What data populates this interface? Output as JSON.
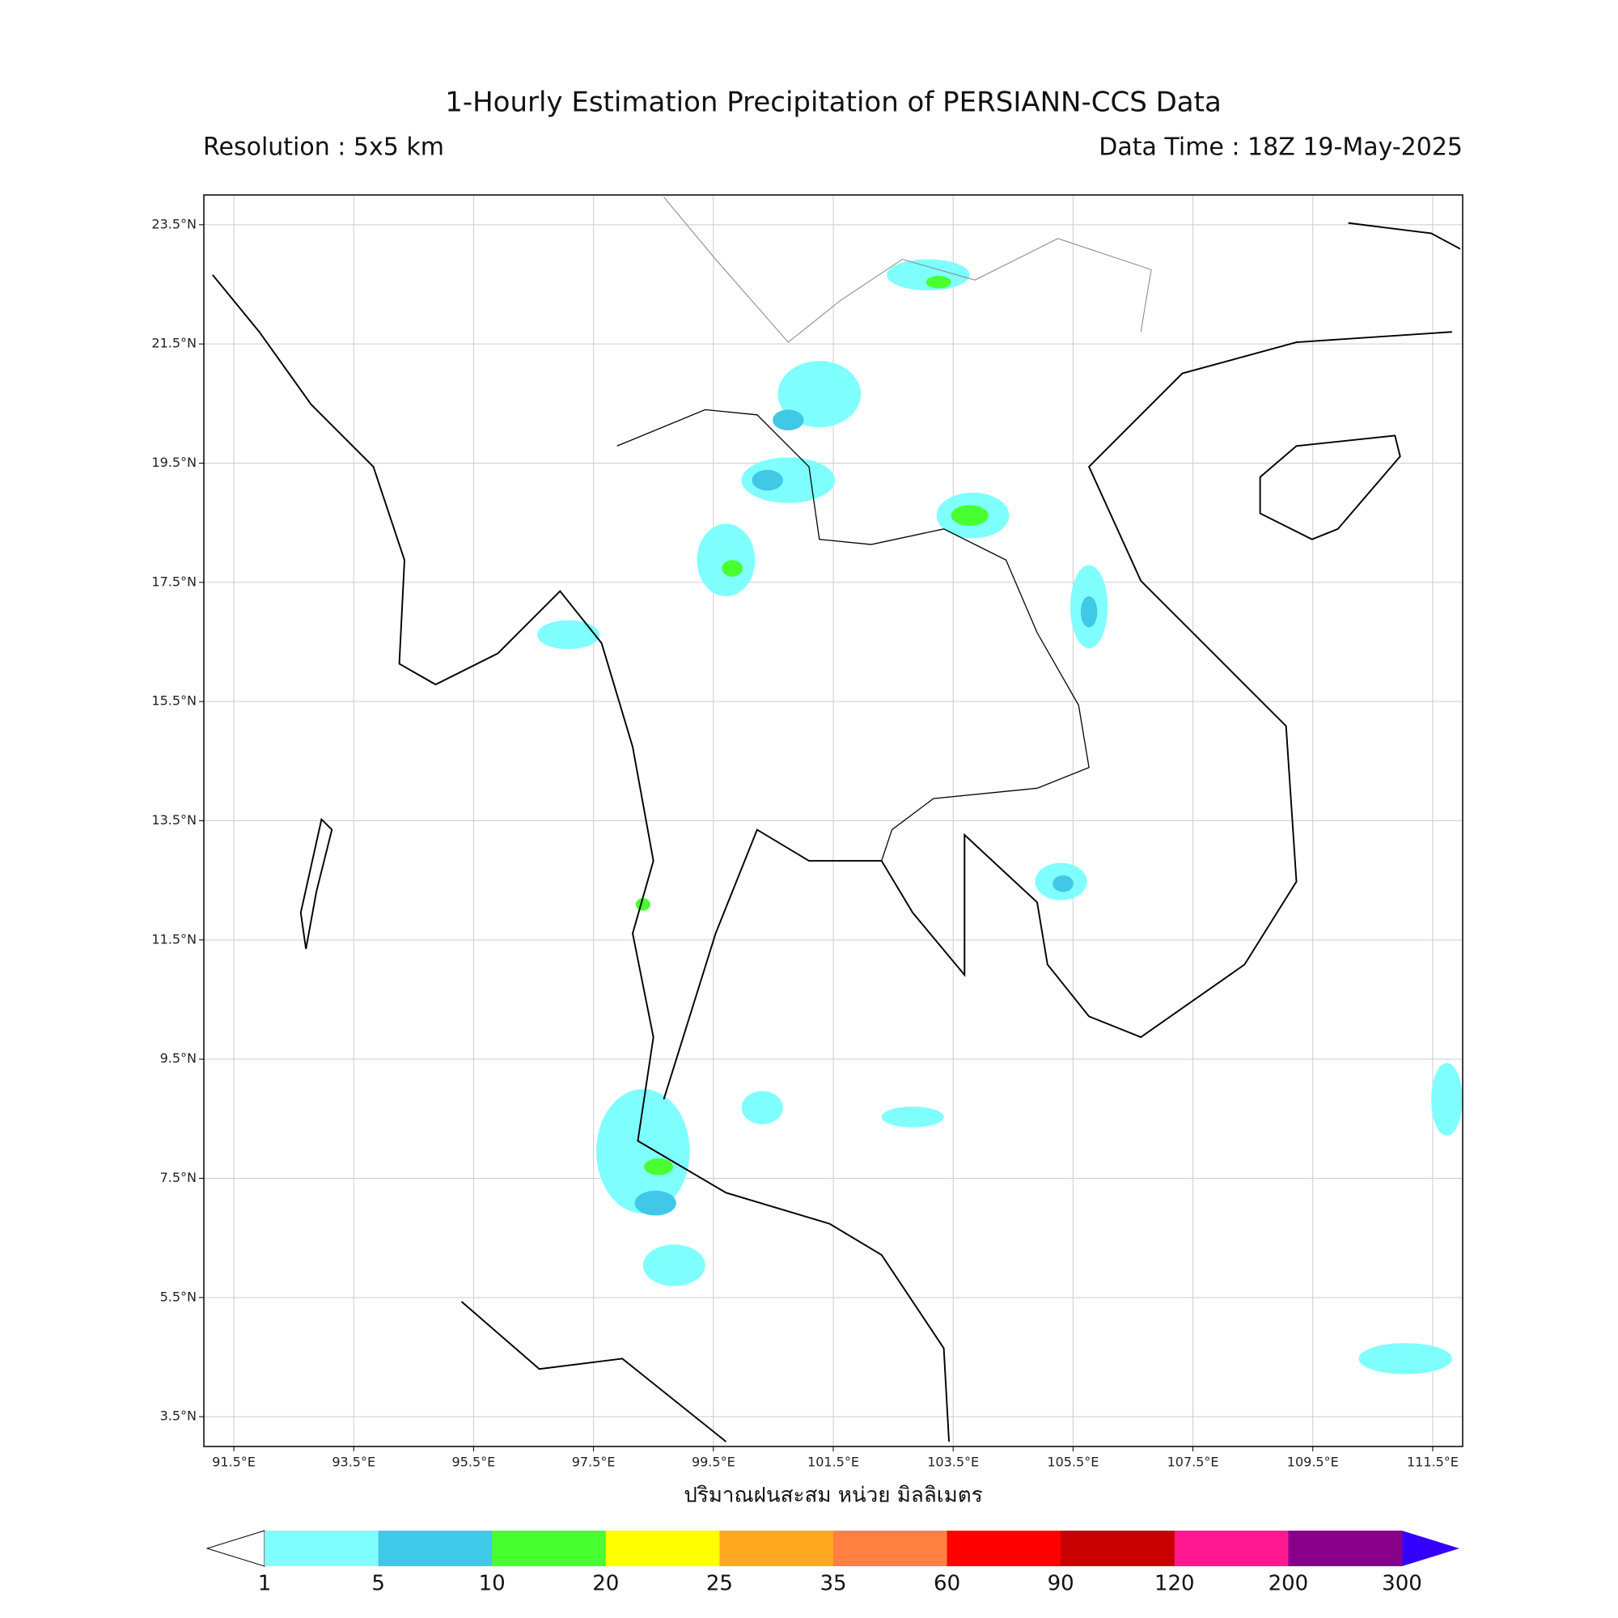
{
  "map": {
    "title": "1-Hourly Estimation Precipitation of PERSIANN-CCS Data",
    "subtitle_left": "Resolution : 5x5 km",
    "subtitle_right": "Data Time : 18Z 19-May-2025",
    "xlabel": "ปริมาณฝนสะสม หน่วย มิลลิเมตร",
    "lon_lim": [
      91,
      112
    ],
    "lat_lim": [
      3,
      24
    ],
    "grid": true,
    "lat_ticks": [
      {
        "value": 23.5,
        "label": "23.5°N"
      },
      {
        "value": 21.5,
        "label": "21.5°N"
      },
      {
        "value": 19.5,
        "label": "19.5°N"
      },
      {
        "value": 17.5,
        "label": "17.5°N"
      },
      {
        "value": 15.5,
        "label": "15.5°N"
      },
      {
        "value": 13.5,
        "label": "13.5°N"
      },
      {
        "value": 11.5,
        "label": "11.5°N"
      },
      {
        "value": 9.5,
        "label": "9.5°N"
      },
      {
        "value": 7.5,
        "label": "7.5°N"
      },
      {
        "value": 5.5,
        "label": "5.5°N"
      },
      {
        "value": 3.5,
        "label": "3.5°N"
      }
    ],
    "lon_ticks": [
      {
        "value": 91.5,
        "label": "91.5°E"
      },
      {
        "value": 93.5,
        "label": "93.5°E"
      },
      {
        "value": 95.5,
        "label": "95.5°E"
      },
      {
        "value": 97.5,
        "label": "97.5°E"
      },
      {
        "value": 99.5,
        "label": "99.5°E"
      },
      {
        "value": 101.5,
        "label": "101.5°E"
      },
      {
        "value": 103.5,
        "label": "103.5°E"
      },
      {
        "value": 105.5,
        "label": "105.5°E"
      },
      {
        "value": 107.5,
        "label": "107.5°E"
      },
      {
        "value": 109.5,
        "label": "109.5°E"
      },
      {
        "value": 111.5,
        "label": "111.5°E"
      }
    ],
    "colorbar": {
      "bounds": [
        1,
        5,
        10,
        20,
        25,
        35,
        60,
        90,
        120,
        200,
        300
      ],
      "colors": [
        "#80ffff",
        "#40c8e8",
        "#48ff30",
        "#ffff00",
        "#ffa820",
        "#ff8040",
        "#ff0000",
        "#c80000",
        "#ff1890",
        "#880088"
      ],
      "extend_min_color": "#ffffff",
      "extend_max_color": "#3300ff"
    }
  }
}
